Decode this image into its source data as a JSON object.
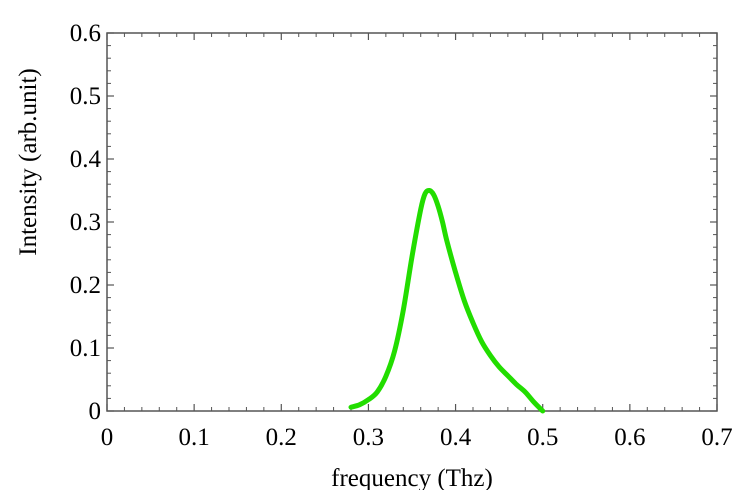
{
  "chart_data": {
    "type": "line",
    "title": "",
    "xlabel": "frequency (Thz)",
    "ylabel": "Intensity (arb.unit)",
    "xlim": [
      0,
      0.7
    ],
    "ylim": [
      0,
      0.6
    ],
    "x_ticks": [
      0,
      0.1,
      0.2,
      0.3,
      0.4,
      0.5,
      0.6,
      0.7
    ],
    "x_tick_labels": [
      "0",
      "0.1",
      "0.2",
      "0.3",
      "0.4",
      "0.5",
      "0.6",
      "0.7"
    ],
    "y_ticks": [
      0,
      0.1,
      0.2,
      0.3,
      0.4,
      0.5,
      0.6
    ],
    "y_tick_labels": [
      "0",
      "0.1",
      "0.2",
      "0.3",
      "0.4",
      "0.5",
      "0.6"
    ],
    "grid": false,
    "legend": "none",
    "series": [
      {
        "color": "#22dd00",
        "x": [
          0.28,
          0.29,
          0.3,
          0.31,
          0.32,
          0.33,
          0.34,
          0.35,
          0.36,
          0.365,
          0.37,
          0.375,
          0.38,
          0.385,
          0.39,
          0.4,
          0.41,
          0.42,
          0.43,
          0.44,
          0.45,
          0.46,
          0.47,
          0.48,
          0.49,
          0.5
        ],
        "y": [
          0.006,
          0.01,
          0.018,
          0.03,
          0.055,
          0.095,
          0.16,
          0.245,
          0.32,
          0.345,
          0.35,
          0.343,
          0.325,
          0.3,
          0.27,
          0.22,
          0.175,
          0.14,
          0.11,
          0.088,
          0.07,
          0.056,
          0.042,
          0.03,
          0.014,
          0.0
        ]
      }
    ]
  }
}
